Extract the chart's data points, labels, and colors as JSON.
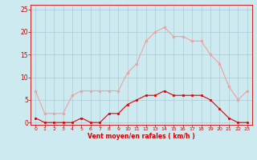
{
  "x": [
    0,
    1,
    2,
    3,
    4,
    5,
    6,
    7,
    8,
    9,
    10,
    11,
    12,
    13,
    14,
    15,
    16,
    17,
    18,
    19,
    20,
    21,
    22,
    23
  ],
  "rafales": [
    7,
    2,
    2,
    2,
    6,
    7,
    7,
    7,
    7,
    7,
    11,
    13,
    18,
    20,
    21,
    19,
    19,
    18,
    18,
    15,
    13,
    8,
    5,
    7
  ],
  "moyen": [
    1,
    0,
    0,
    0,
    0,
    1,
    0,
    0,
    2,
    2,
    4,
    5,
    6,
    6,
    7,
    6,
    6,
    6,
    6,
    5,
    3,
    1,
    0,
    0
  ],
  "line_color_rafales": "#f0a0a0",
  "line_color_moyen": "#dd0000",
  "marker_color_rafales": "#f0a0a0",
  "marker_color_moyen": "#dd0000",
  "bg_color": "#cceaf0",
  "grid_color": "#aaccd4",
  "xlabel": "Vent moyen/en rafales ( km/h )",
  "xlabel_color": "#cc0000",
  "tick_color": "#cc0000",
  "ylim": [
    -0.5,
    26
  ],
  "xlim": [
    -0.5,
    23.5
  ],
  "yticks": [
    0,
    5,
    10,
    15,
    20,
    25
  ],
  "xticks": [
    0,
    1,
    2,
    3,
    4,
    5,
    6,
    7,
    8,
    9,
    10,
    11,
    12,
    13,
    14,
    15,
    16,
    17,
    18,
    19,
    20,
    21,
    22,
    23
  ]
}
